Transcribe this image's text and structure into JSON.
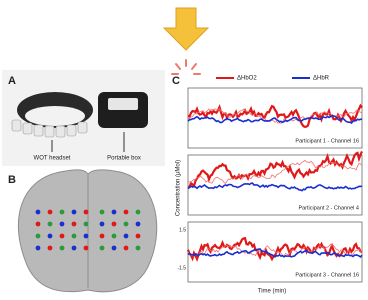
{
  "panel_a": {
    "label": "A",
    "headset": "WOT headset",
    "box": "Portable box"
  },
  "panel_b": {
    "label": "B"
  },
  "panel_c": {
    "label": "C",
    "legend": [
      "ΔHbO2",
      "ΔHbR"
    ],
    "y_label": "Concentration (μMol)",
    "x_label": "Time (min)",
    "panels": [
      "Participant 1 - Channel 16",
      "Participant 2 - Channel 4",
      "Participant 3 - Channel 16"
    ],
    "tick_labels": [
      "1.5",
      "-1.5"
    ]
  }
}
